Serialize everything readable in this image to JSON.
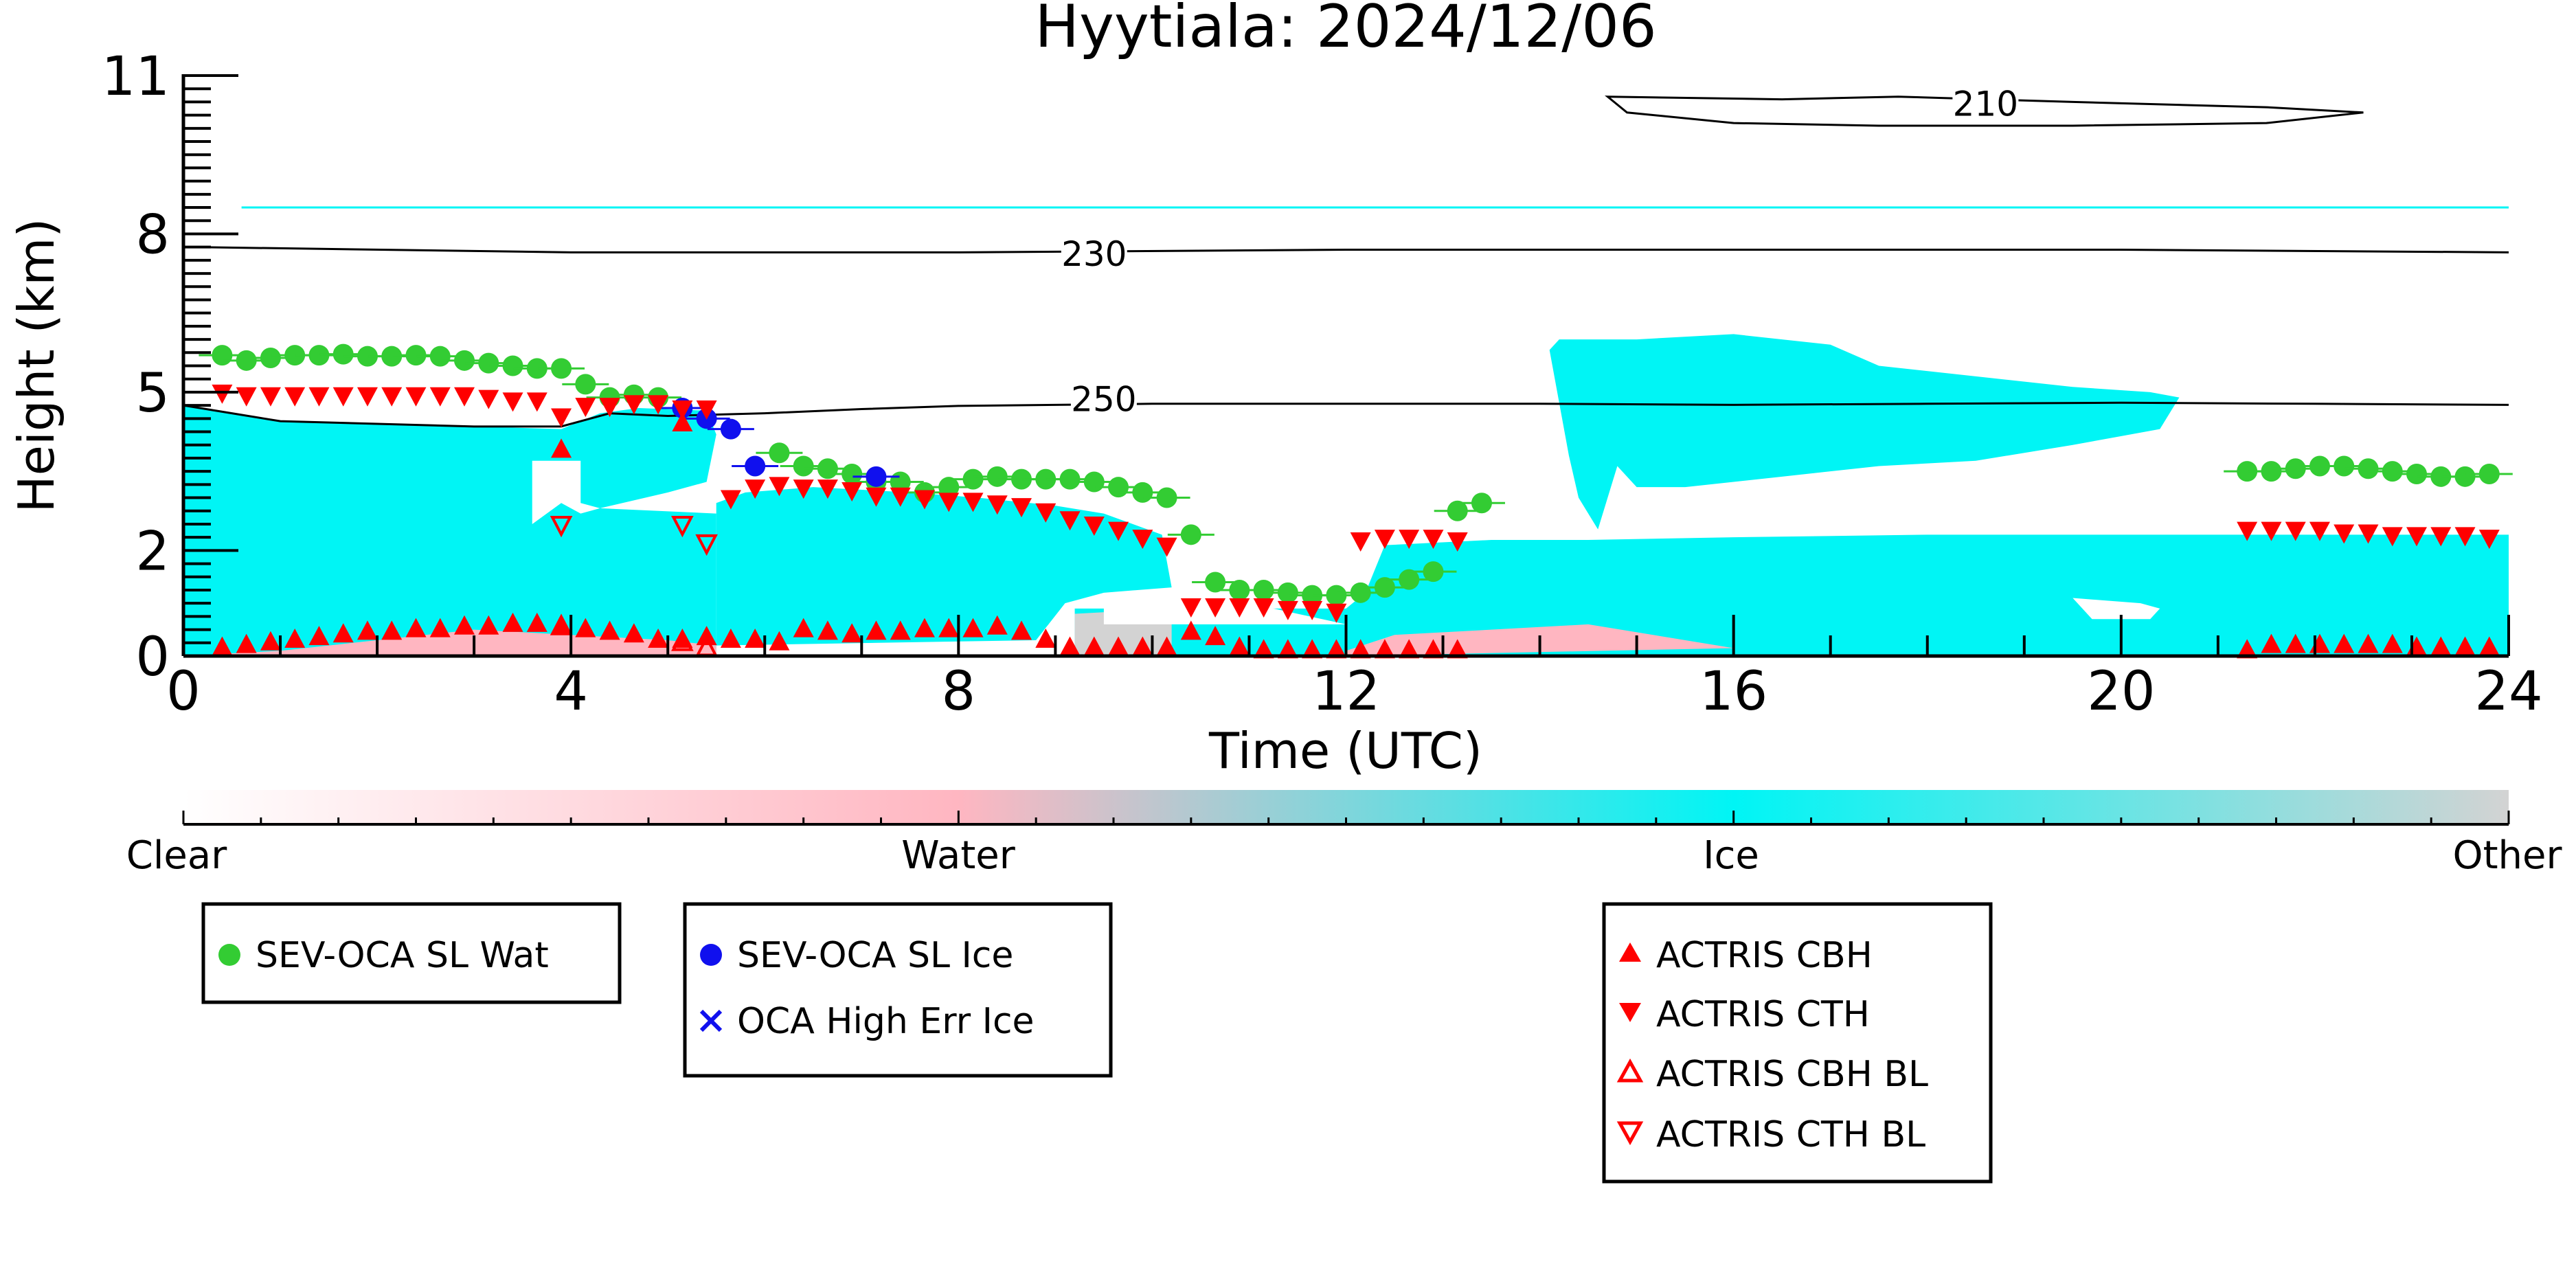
{
  "chart_data": {
    "type": "scatter",
    "title": "Hyytiala: 2024/12/06",
    "xlabel": "Time (UTC)",
    "ylabel": "Height (km)",
    "xlim": [
      0,
      24
    ],
    "ylim": [
      0,
      11
    ],
    "xticks": [
      0,
      4,
      8,
      12,
      16,
      20,
      24
    ],
    "yticks": [
      0,
      2,
      5,
      8,
      11
    ],
    "xtick_labels": [
      "0",
      "4",
      "8",
      "12",
      "16",
      "20",
      "24"
    ],
    "ytick_labels": [
      "0",
      "2",
      "5",
      "8",
      "11"
    ],
    "colorbar": {
      "labels": [
        "Clear",
        "Water",
        "Ice",
        "Other"
      ],
      "colors": [
        "#ffffff",
        "#ffb6c1",
        "#00f5f5",
        "#d3d3d3"
      ]
    },
    "colors": {
      "ice": "#00f5f5",
      "water": "#ffb6c1",
      "other": "#d3d3d3",
      "sev_wat": "#33cc33",
      "sev_ice": "#1010ee",
      "actris": "#ff0000",
      "contour": "#000000"
    },
    "contours": [
      {
        "label": "210",
        "upper": [
          [
            14.7,
            10.6
          ],
          [
            16.5,
            10.55
          ],
          [
            17.7,
            10.6
          ],
          [
            19.5,
            10.5
          ],
          [
            21.5,
            10.4
          ],
          [
            22.5,
            10.3
          ]
        ],
        "lower": [
          [
            22.5,
            10.3
          ],
          [
            21.5,
            10.1
          ],
          [
            19.5,
            10.05
          ],
          [
            17.5,
            10.05
          ],
          [
            16.0,
            10.1
          ],
          [
            14.9,
            10.3
          ],
          [
            14.7,
            10.6
          ]
        ],
        "label_at": [
          18.6,
          10.45
        ]
      },
      {
        "label": "230",
        "points": [
          [
            0.1,
            7.75
          ],
          [
            4,
            7.65
          ],
          [
            8,
            7.65
          ],
          [
            12,
            7.7
          ],
          [
            16,
            7.7
          ],
          [
            20,
            7.7
          ],
          [
            24,
            7.65
          ]
        ],
        "label_at": [
          9.4,
          7.6
        ]
      },
      {
        "label": "250",
        "points": [
          [
            0.0,
            4.75
          ],
          [
            0.5,
            4.6
          ],
          [
            1.0,
            4.45
          ],
          [
            2.0,
            4.4
          ],
          [
            3.0,
            4.35
          ],
          [
            3.9,
            4.35
          ],
          [
            4.2,
            4.5
          ],
          [
            4.4,
            4.6
          ],
          [
            5.0,
            4.55
          ],
          [
            6.0,
            4.6
          ],
          [
            7.0,
            4.68
          ],
          [
            8.0,
            4.74
          ],
          [
            9.0,
            4.76
          ],
          [
            10.0,
            4.78
          ],
          [
            12.0,
            4.78
          ],
          [
            14.0,
            4.78
          ],
          [
            16.0,
            4.76
          ],
          [
            18.0,
            4.78
          ],
          [
            20.0,
            4.8
          ],
          [
            22.0,
            4.78
          ],
          [
            24.0,
            4.76
          ]
        ],
        "label_at": [
          9.5,
          4.85
        ]
      }
    ],
    "series": [
      {
        "name": "SEV-OCA SL Wat",
        "marker": "circle",
        "x": [
          0.4,
          0.65,
          0.9,
          1.15,
          1.4,
          1.65,
          1.9,
          2.15,
          2.4,
          2.65,
          2.9,
          3.15,
          3.4,
          3.65,
          3.9,
          4.15,
          4.4,
          4.65,
          4.9,
          6.15,
          6.4,
          6.65,
          6.9,
          7.15,
          7.4,
          7.65,
          7.9,
          8.15,
          8.4,
          8.65,
          8.9,
          9.15,
          9.4,
          9.65,
          9.9,
          10.15,
          10.4,
          10.65,
          10.9,
          11.15,
          11.4,
          11.65,
          11.9,
          12.15,
          12.4,
          12.65,
          12.9,
          13.15,
          13.4,
          21.3,
          21.55,
          21.8,
          22.05,
          22.3,
          22.55,
          22.8,
          23.05,
          23.3,
          23.55,
          23.8
        ],
        "y": [
          5.7,
          5.6,
          5.65,
          5.7,
          5.7,
          5.72,
          5.68,
          5.68,
          5.7,
          5.68,
          5.6,
          5.55,
          5.5,
          5.45,
          5.45,
          5.15,
          4.9,
          4.95,
          4.9,
          3.85,
          3.6,
          3.55,
          3.45,
          3.3,
          3.3,
          3.1,
          3.2,
          3.35,
          3.4,
          3.35,
          3.35,
          3.35,
          3.3,
          3.2,
          3.1,
          3.0,
          2.3,
          1.4,
          1.25,
          1.25,
          1.2,
          1.15,
          1.15,
          1.2,
          1.3,
          1.45,
          1.6,
          2.75,
          2.9,
          3.5,
          3.5,
          3.55,
          3.6,
          3.6,
          3.55,
          3.5,
          3.45,
          3.4,
          3.4,
          3.45
        ]
      },
      {
        "name": "SEV-OCA SL Ice",
        "marker": "circle",
        "x": [
          5.15,
          5.4,
          5.65,
          5.9,
          7.15
        ],
        "y": [
          4.7,
          4.5,
          4.3,
          3.6,
          3.4
        ]
      },
      {
        "name": "OCA High Err Ice",
        "marker": "x",
        "x": [],
        "y": []
      },
      {
        "name": "ACTRIS CBH",
        "marker": "triangle-up",
        "x": [
          0.4,
          0.65,
          0.9,
          1.15,
          1.4,
          1.65,
          1.9,
          2.15,
          2.4,
          2.65,
          2.9,
          3.15,
          3.4,
          3.65,
          3.9,
          3.9,
          4.15,
          4.4,
          4.65,
          4.9,
          5.15,
          5.15,
          5.4,
          5.65,
          5.9,
          6.15,
          6.4,
          6.65,
          6.9,
          7.15,
          7.4,
          7.65,
          7.9,
          8.15,
          8.4,
          8.65,
          8.9,
          9.15,
          9.4,
          9.65,
          9.9,
          10.15,
          10.4,
          10.65,
          10.9,
          11.15,
          11.4,
          11.65,
          11.9,
          12.15,
          12.4,
          12.65,
          12.9,
          13.15,
          21.3,
          21.55,
          21.8,
          22.05,
          22.3,
          22.55,
          22.8,
          23.05,
          23.3,
          23.55,
          23.8
        ],
        "y": [
          0.15,
          0.2,
          0.25,
          0.3,
          0.35,
          0.4,
          0.45,
          0.45,
          0.5,
          0.5,
          0.55,
          0.55,
          0.6,
          0.6,
          0.55,
          3.9,
          0.5,
          0.45,
          0.4,
          0.3,
          0.3,
          4.4,
          0.35,
          0.3,
          0.3,
          0.25,
          0.5,
          0.45,
          0.4,
          0.45,
          0.45,
          0.5,
          0.5,
          0.5,
          0.55,
          0.45,
          0.3,
          0.15,
          0.15,
          0.15,
          0.15,
          0.15,
          0.45,
          0.35,
          0.15,
          0.1,
          0.1,
          0.1,
          0.1,
          0.1,
          0.1,
          0.1,
          0.1,
          0.1,
          0.1,
          0.2,
          0.2,
          0.2,
          0.2,
          0.2,
          0.2,
          0.15,
          0.15,
          0.15,
          0.15
        ]
      },
      {
        "name": "ACTRIS CTH",
        "marker": "triangle-down",
        "x": [
          0.4,
          0.65,
          0.9,
          1.15,
          1.4,
          1.65,
          1.9,
          2.15,
          2.4,
          2.65,
          2.9,
          3.15,
          3.4,
          3.65,
          3.9,
          4.15,
          4.4,
          4.65,
          4.9,
          5.15,
          5.4,
          5.65,
          5.9,
          6.15,
          6.4,
          6.65,
          6.9,
          7.15,
          7.4,
          7.65,
          7.9,
          8.15,
          8.4,
          8.65,
          8.9,
          9.15,
          9.4,
          9.65,
          9.9,
          10.15,
          10.4,
          10.65,
          10.9,
          11.15,
          11.4,
          11.65,
          11.9,
          12.15,
          12.4,
          12.65,
          12.9,
          13.15,
          21.3,
          21.55,
          21.8,
          22.05,
          22.3,
          22.55,
          22.8,
          23.05,
          23.3,
          23.55,
          23.8
        ],
        "y": [
          5.0,
          4.95,
          4.95,
          4.95,
          4.95,
          4.95,
          4.95,
          4.95,
          4.95,
          4.95,
          4.95,
          4.9,
          4.85,
          4.85,
          4.55,
          4.75,
          4.75,
          4.8,
          4.8,
          4.7,
          4.7,
          3.0,
          3.2,
          3.25,
          3.2,
          3.2,
          3.15,
          3.05,
          3.05,
          3.0,
          2.95,
          2.95,
          2.9,
          2.85,
          2.75,
          2.6,
          2.5,
          2.4,
          2.25,
          2.1,
          0.95,
          0.95,
          0.95,
          0.95,
          0.9,
          0.9,
          0.85,
          2.2,
          2.25,
          2.25,
          2.25,
          2.2,
          2.4,
          2.4,
          2.4,
          2.4,
          2.35,
          2.35,
          2.3,
          2.3,
          2.3,
          2.3,
          2.25
        ]
      },
      {
        "name": "ACTRIS CBH BL",
        "marker": "triangle-up-open",
        "x": [
          3.9,
          5.15,
          5.4
        ],
        "y": [
          0.55,
          0.25,
          0.15
        ]
      },
      {
        "name": "ACTRIS CTH BL",
        "marker": "triangle-down-open",
        "x": [
          3.9,
          5.15,
          5.4
        ],
        "y": [
          2.5,
          2.5,
          2.15
        ]
      }
    ],
    "legends": [
      {
        "items": [
          {
            "label": "SEV-OCA SL Wat",
            "marker": "circle",
            "color": "#33cc33"
          }
        ]
      },
      {
        "items": [
          {
            "label": "SEV-OCA SL Ice",
            "marker": "circle",
            "color": "#1010ee"
          },
          {
            "label": "OCA High Err Ice",
            "marker": "x",
            "color": "#1010ee"
          }
        ]
      },
      {
        "items": [
          {
            "label": "ACTRIS CBH",
            "marker": "triangle-up",
            "color": "#ff0000"
          },
          {
            "label": "ACTRIS CTH",
            "marker": "triangle-down",
            "color": "#ff0000"
          },
          {
            "label": "ACTRIS CBH BL",
            "marker": "triangle-up-open",
            "color": "#ff0000"
          },
          {
            "label": "ACTRIS CTH BL",
            "marker": "triangle-down-open",
            "color": "#ff0000"
          }
        ]
      }
    ]
  }
}
